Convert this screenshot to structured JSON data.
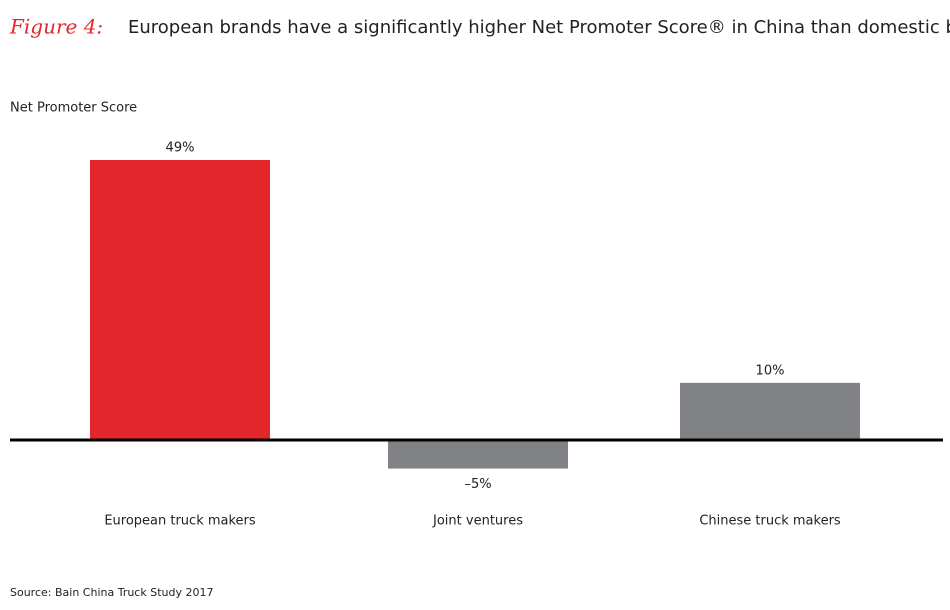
{
  "chart_data": {
    "type": "bar",
    "figure_label": "Figure 4:",
    "title": "European brands have a significantly higher Net Promoter Score® in China than domestic brands",
    "y_label": "Net Promoter Score",
    "categories": [
      "European truck makers",
      "Joint ventures",
      "Chinese truck makers"
    ],
    "values": [
      49,
      -5,
      10
    ],
    "value_labels": [
      "49%",
      "–5%",
      "10%"
    ],
    "colors": [
      "#e3262b",
      "#808285",
      "#808285"
    ],
    "source": "Source: Bain China Truck Study 2017"
  }
}
